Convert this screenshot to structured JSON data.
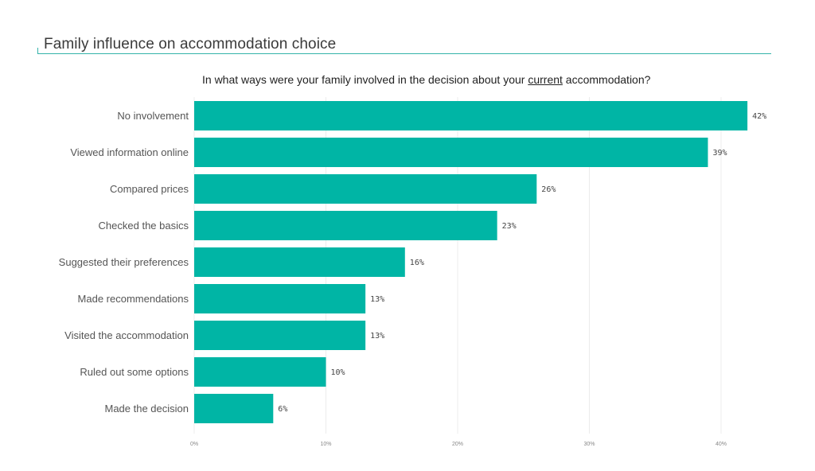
{
  "header": {
    "title": "Family influence on accommodation choice"
  },
  "question": {
    "before": "In what ways were your family involved in the decision about your ",
    "emphasis": "current",
    "after": " accommodation?"
  },
  "colors": {
    "bar": "#00b5a5",
    "rule": "#34b3aa"
  },
  "chart_data": {
    "type": "bar",
    "orientation": "horizontal",
    "title": "In what ways were your family involved in the decision about your current accommodation?",
    "categories": [
      "No involvement",
      "Viewed information online",
      "Compared prices",
      "Checked the basics",
      "Suggested their preferences",
      "Made recommendations",
      "Visited the accommodation",
      "Ruled out some options",
      "Made the decision"
    ],
    "values": [
      42,
      39,
      26,
      23,
      16,
      13,
      13,
      10,
      6
    ],
    "value_labels": [
      "42%",
      "39%",
      "26%",
      "23%",
      "16%",
      "13%",
      "13%",
      "10%",
      "6%"
    ],
    "x_ticks": [
      0,
      10,
      20,
      30,
      40
    ],
    "x_tick_labels": [
      "0%",
      "10%",
      "20%",
      "30%",
      "40%"
    ],
    "xlim": [
      0,
      42
    ],
    "xlabel": "",
    "ylabel": "",
    "grid": true,
    "legend": "none"
  }
}
